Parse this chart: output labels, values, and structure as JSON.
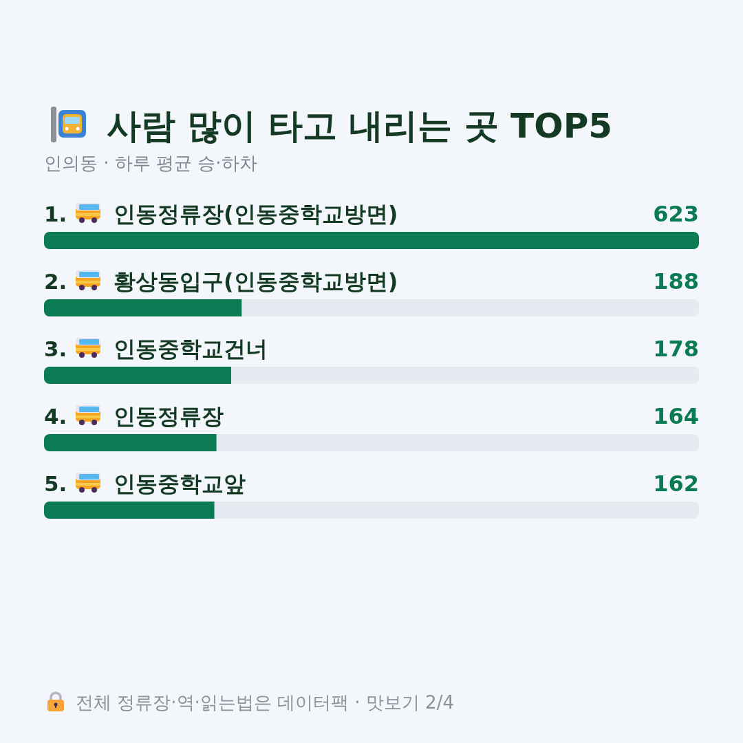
{
  "chart_data": {
    "type": "bar",
    "orientation": "horizontal",
    "title": "사람 많이 타고 내리는 곳 TOP5",
    "subtitle": "인의동 · 하루 평균 승·하차",
    "categories": [
      "1. 인동정류장(인동중학교방면)",
      "2. 황상동입구(인동중학교방면)",
      "3. 인동중학교건너",
      "4. 인동정류장",
      "5. 인동중학교앞"
    ],
    "values": [
      623,
      188,
      178,
      164,
      162
    ],
    "color": "#0a7b52",
    "xlim": [
      0,
      623
    ],
    "data_labels": true,
    "annotations": [
      "전체 정류장·역·읽는법은 데이터팩 · 맛보기 2/4"
    ]
  }
}
